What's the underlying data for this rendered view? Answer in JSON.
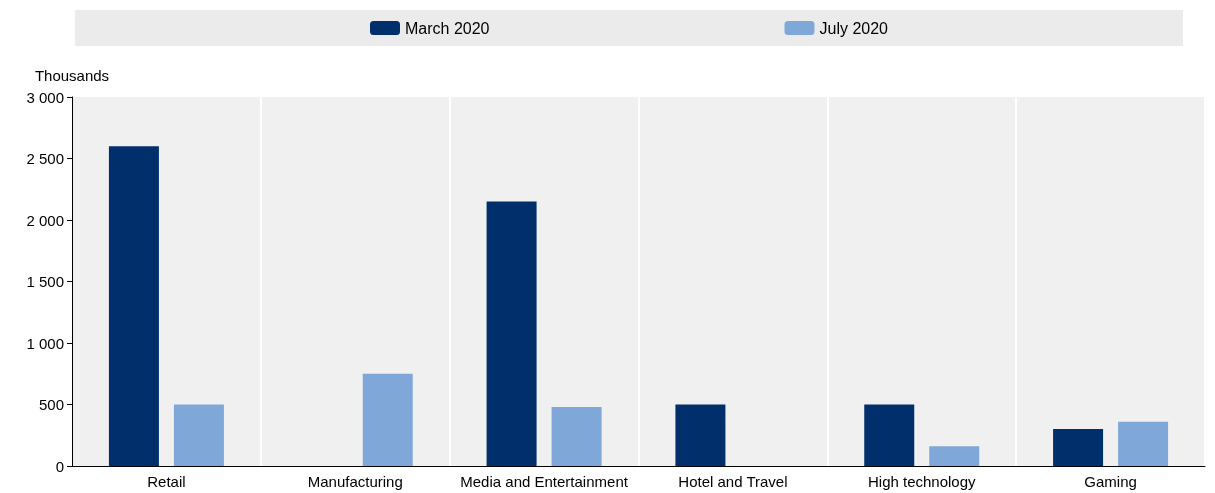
{
  "chart_data": {
    "type": "bar",
    "ylabel": "Thousands",
    "categories": [
      "Retail",
      "Manufacturing",
      "Media and Entertainment",
      "Hotel and Travel",
      "High technology",
      "Gaming"
    ],
    "series": [
      {
        "name": "March 2020",
        "color": "#002f6c",
        "values": [
          2600,
          null,
          2150,
          500,
          500,
          300
        ]
      },
      {
        "name": "July 2020",
        "color": "#7fa8d9",
        "values": [
          500,
          750,
          480,
          null,
          160,
          360
        ]
      }
    ],
    "ylim": [
      0,
      3000
    ],
    "yticks": [
      0,
      500,
      {
        "value": 1000,
        "label": "1 000"
      },
      {
        "value": 1500,
        "label": "1 500"
      },
      {
        "value": 2000,
        "label": "2 000"
      },
      {
        "value": 2500,
        "label": "2 500"
      },
      {
        "value": 3000,
        "label": "3 000"
      }
    ],
    "grid": "x",
    "legend": "top"
  }
}
